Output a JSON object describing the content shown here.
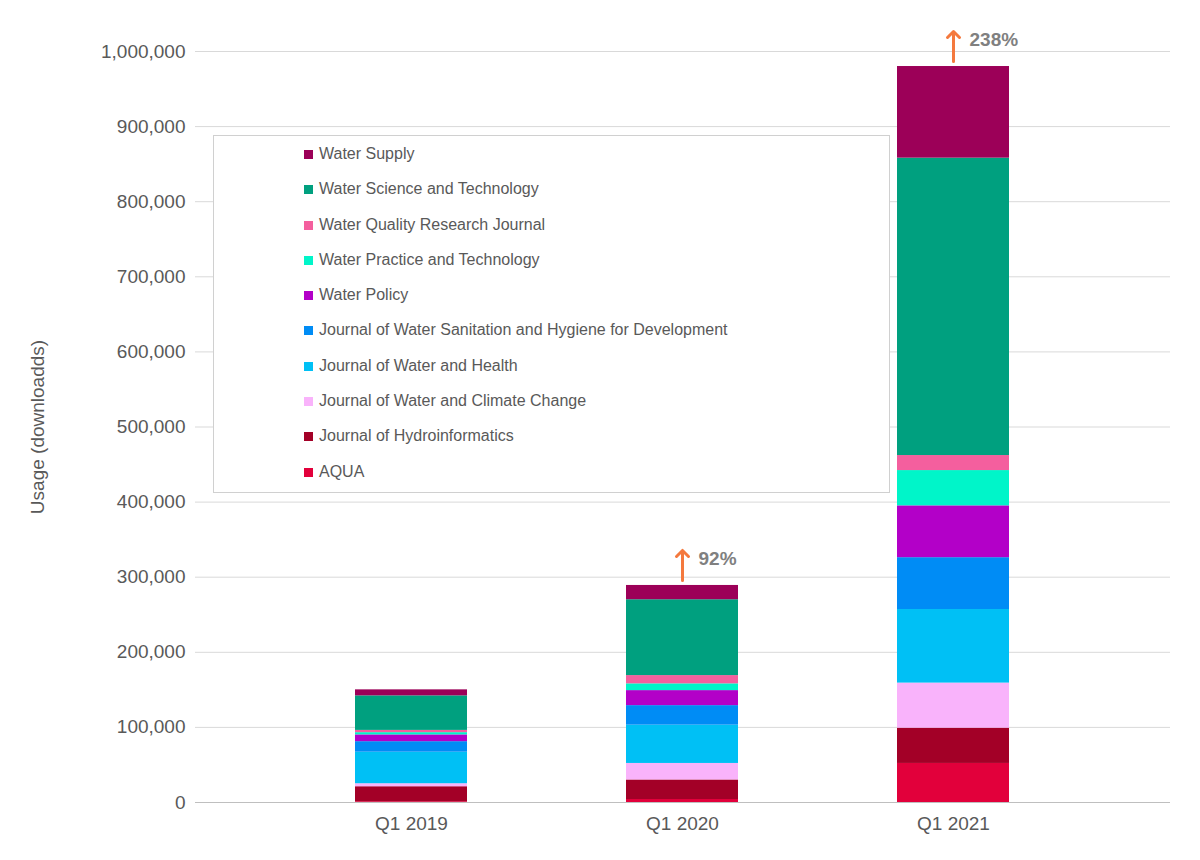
{
  "chart_data": {
    "type": "bar",
    "stacked": true,
    "grid": true,
    "legend": "upper left",
    "y_label": "Usage (downloadds)",
    "categories": [
      "Q1 2019",
      "Q1 2020",
      "Q1 2021"
    ],
    "ylim": [
      0,
      1000000
    ],
    "yticks": [
      0,
      {
        "value": 100000,
        "label": "100,000"
      },
      {
        "value": 200000,
        "label": "200,000"
      },
      {
        "value": 300000,
        "label": "300,000"
      },
      {
        "value": 400000,
        "label": "400,000"
      },
      {
        "value": 500000,
        "label": "500,000"
      },
      {
        "value": 600000,
        "label": "600,000"
      },
      {
        "value": 700000,
        "label": "700,000"
      },
      {
        "value": 800000,
        "label": "800,000"
      },
      {
        "value": 900000,
        "label": "900,000"
      },
      {
        "value": 1000000,
        "label": "1,000,000"
      }
    ],
    "series": [
      {
        "name": "AQUA",
        "color": "#e2003b",
        "values": [
          1000,
          4000,
          52000
        ]
      },
      {
        "name": "Journal of Hydroinformatics",
        "color": "#a30027",
        "values": [
          20000,
          26000,
          47000
        ]
      },
      {
        "name": "Journal of Water and Climate Change",
        "color": "#f9b3fb",
        "values": [
          4000,
          22000,
          60000
        ]
      },
      {
        "name": "Journal of Water and Health",
        "color": "#00c0f5",
        "values": [
          42000,
          51000,
          98000
        ]
      },
      {
        "name": "Journal of Water Sanitation and Hygiene for Development",
        "color": "#008cf5",
        "values": [
          14000,
          26000,
          69000
        ]
      },
      {
        "name": "Water Policy",
        "color": "#b300c8",
        "values": [
          9000,
          20000,
          69000
        ]
      },
      {
        "name": "Water Practice and Technology",
        "color": "#00f5c9",
        "values": [
          3000,
          9000,
          47000
        ]
      },
      {
        "name": "Water Quality Research Journal",
        "color": "#f45f9e",
        "values": [
          3000,
          11000,
          20000
        ]
      },
      {
        "name": "Water Science and Technology",
        "color": "#00a07f",
        "values": [
          46000,
          101000,
          396000
        ]
      },
      {
        "name": "Water Supply",
        "color": "#9c0058",
        "values": [
          8000,
          19000,
          122000
        ]
      }
    ],
    "annotations": [
      {
        "category": "Q1 2020",
        "text": "92%"
      },
      {
        "category": "Q1 2021",
        "text": "238%"
      }
    ]
  }
}
